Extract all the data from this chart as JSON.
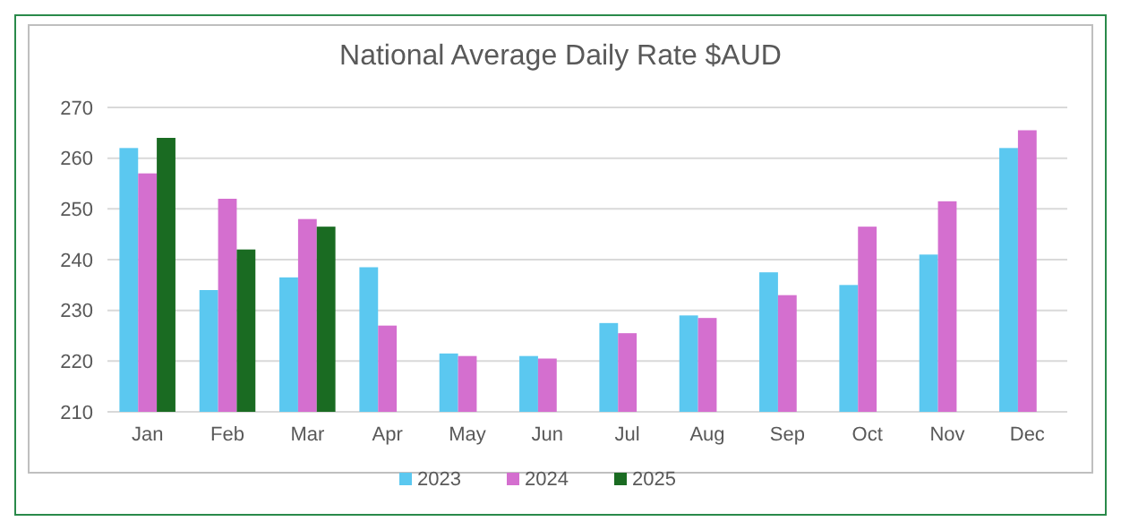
{
  "chart_data": {
    "type": "bar",
    "title": "National Average Daily Rate $AUD",
    "categories": [
      "Jan",
      "Feb",
      "Mar",
      "Apr",
      "May",
      "Jun",
      "Jul",
      "Aug",
      "Sep",
      "Oct",
      "Nov",
      "Dec"
    ],
    "series": [
      {
        "name": "2023",
        "color": "#5bc8f0",
        "values": [
          262,
          234,
          236.5,
          238.5,
          221.5,
          221,
          227.5,
          229,
          237.5,
          235,
          241,
          262
        ]
      },
      {
        "name": "2024",
        "color": "#d46fcf",
        "values": [
          257,
          252,
          248,
          227,
          221,
          220.5,
          225.5,
          228.5,
          233,
          246.5,
          251.5,
          265.5
        ]
      },
      {
        "name": "2025",
        "color": "#1a6b22",
        "values": [
          264,
          242,
          246.5,
          null,
          null,
          null,
          null,
          null,
          null,
          null,
          null,
          null
        ]
      }
    ],
    "ylim": [
      210,
      270
    ],
    "yticks": [
      210,
      220,
      230,
      240,
      250,
      260,
      270
    ],
    "grid": "y",
    "legend": "bottom"
  }
}
